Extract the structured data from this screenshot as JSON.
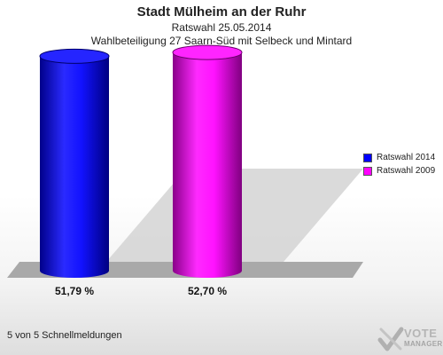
{
  "header": {
    "title": "Stadt Mülheim an der Ruhr",
    "subtitle": "Ratswahl 25.05.2014",
    "subtitle2": "Wahlbeteiligung 27 Saarn-Süd mit Selbeck und Mintard"
  },
  "chart_data": {
    "type": "bar",
    "categories": [
      "Ratswahl 2014",
      "Ratswahl 2009"
    ],
    "values": [
      51.79,
      52.7
    ],
    "value_labels": [
      "51,79 %",
      "52,70 %"
    ],
    "colors": [
      "#0000ff",
      "#ff00ff"
    ],
    "ylim": [
      0,
      60
    ],
    "legend": [
      {
        "label": "Ratswahl 2014",
        "color": "#0000ff"
      },
      {
        "label": "Ratswahl 2009",
        "color": "#ff00ff"
      }
    ],
    "legend_position": "right",
    "grid": false
  },
  "footer": {
    "text": "5 von 5 Schnellmeldungen"
  },
  "logo": {
    "line1": "VOTE",
    "line2": "MANAGER"
  }
}
